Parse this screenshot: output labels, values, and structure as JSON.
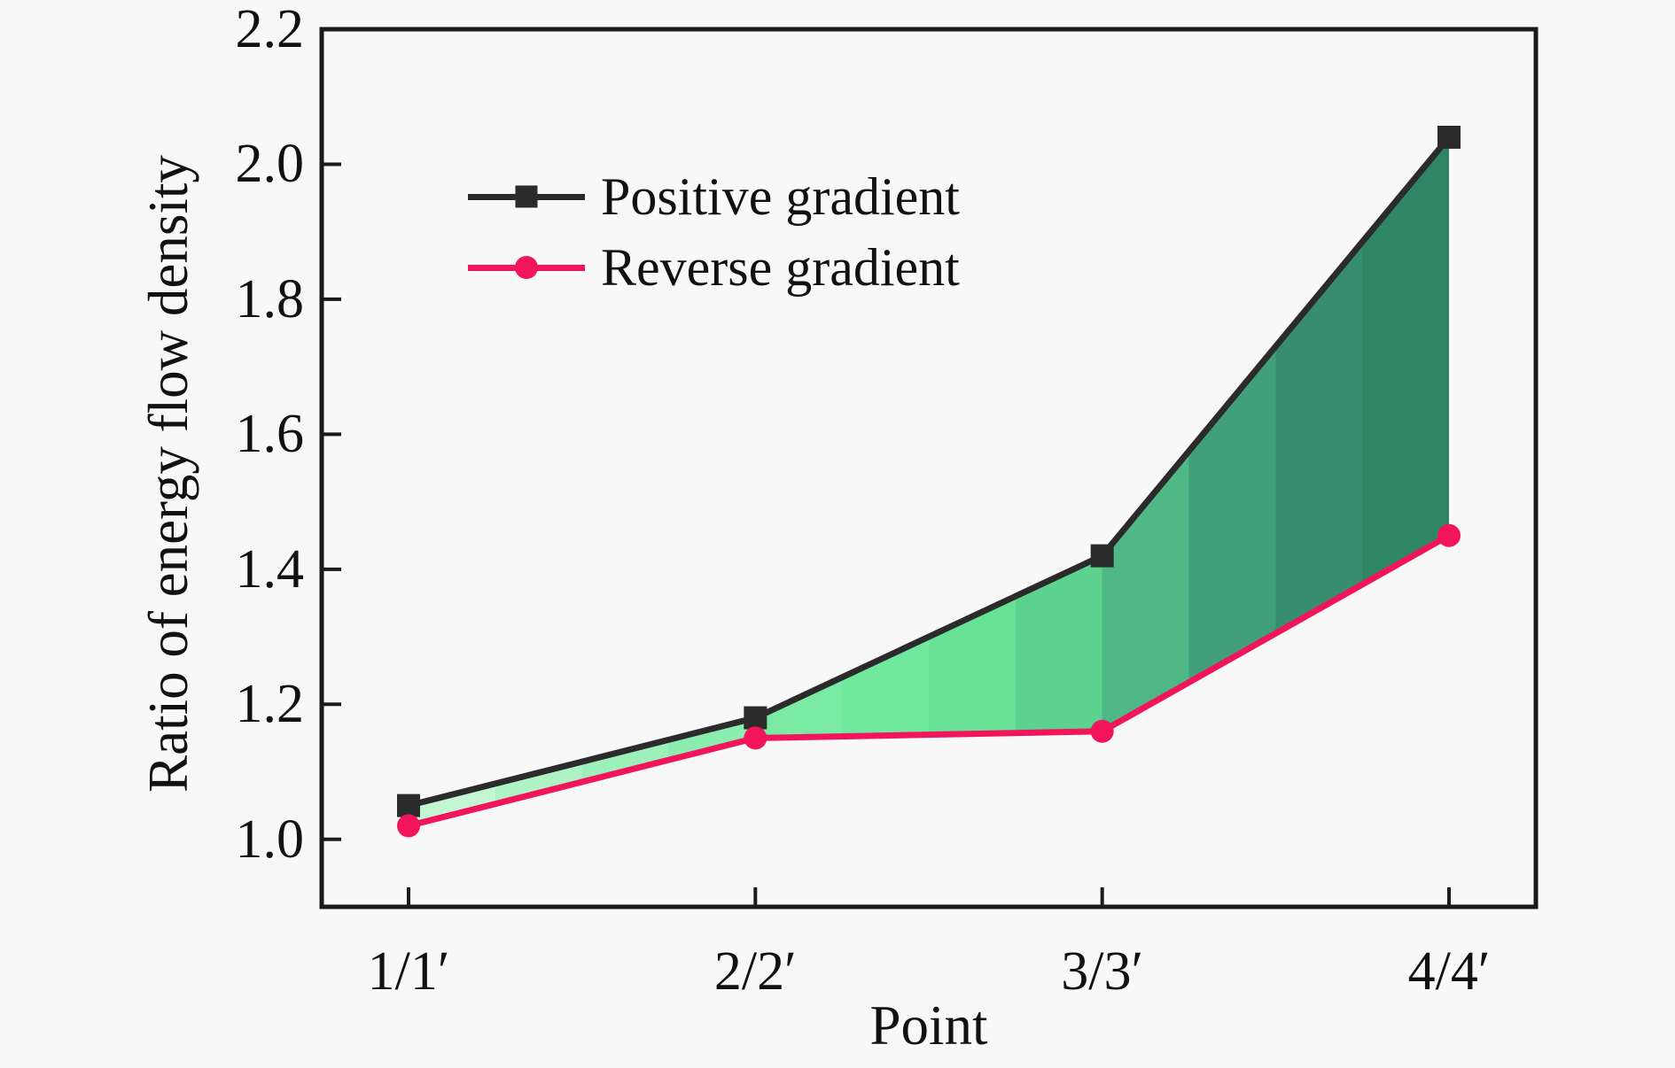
{
  "figure": {
    "background_color": "#f8f8f8",
    "axis_color": "#1a1a1a",
    "text_color": "#111111"
  },
  "chart_data": {
    "type": "line",
    "title": "",
    "xlabel": "Point",
    "ylabel": "Ratio of energy flow density",
    "categories": [
      "1/1′",
      "2/2′",
      "3/3′",
      "4/4′"
    ],
    "series": [
      {
        "name": "Positive gradient",
        "color": "#2b2b2b",
        "marker": "square",
        "values": [
          1.05,
          1.18,
          1.42,
          2.04
        ]
      },
      {
        "name": "Reverse gradient",
        "color": "#f2155c",
        "marker": "circle",
        "values": [
          1.02,
          1.15,
          1.16,
          1.45
        ]
      }
    ],
    "ylim": [
      0.9,
      2.2
    ],
    "yticks": [
      1.0,
      1.2,
      1.4,
      1.6,
      1.8,
      2.0,
      2.2
    ],
    "ytick_labels": [
      "1.0",
      "1.2",
      "1.4",
      "1.6",
      "1.8",
      "2.0",
      "2.2"
    ],
    "grid": false,
    "legend_position": "upper left inside",
    "fill_between": {
      "from_series": "Positive gradient",
      "to_series": "Reverse gradient",
      "band_colors": [
        "#c5f6d3",
        "#aff3c5",
        "#9df0ba",
        "#8bedaf",
        "#7beaa5",
        "#70e89e",
        "#68e297",
        "#5dd28e",
        "#4fb886",
        "#429f7b",
        "#378d6f",
        "#2e8667"
      ]
    }
  }
}
